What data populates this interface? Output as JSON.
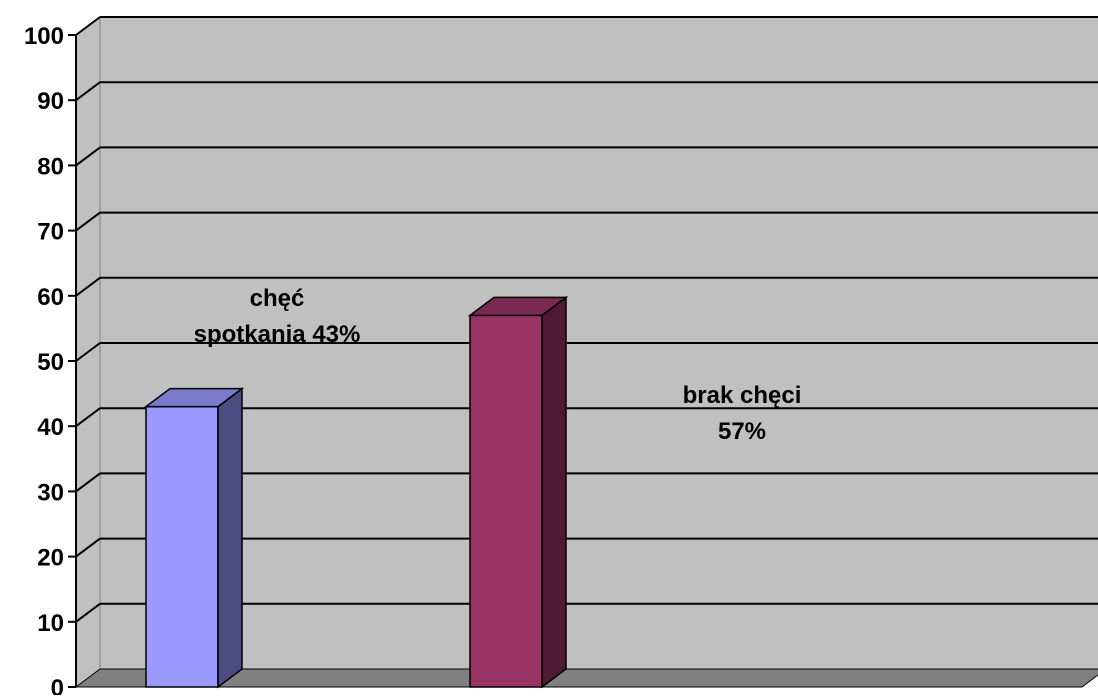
{
  "chart_data": {
    "type": "bar",
    "title": "",
    "xlabel": "",
    "ylabel": "",
    "ylim": [
      0,
      100
    ],
    "yticks": [
      0,
      10,
      20,
      30,
      40,
      50,
      60,
      70,
      80,
      90,
      100
    ],
    "grid": true,
    "legend": "none",
    "style": "3d-column",
    "categories": [
      "chęć spotkania",
      "brak chęci"
    ],
    "values": [
      43,
      57
    ],
    "data_labels": [
      [
        "chęć",
        "spotkania 43%"
      ],
      [
        "brak chęci",
        "57%"
      ]
    ],
    "colors": {
      "wall": "#c0c0c0",
      "floor": "#808080",
      "gridline": "#000000",
      "bar1_front": "#9999ff",
      "bar1_side": "#4c4c80",
      "bar1_top": "#7a7acc",
      "bar2_front": "#993366",
      "bar2_side": "#4d1a33",
      "bar2_top": "#7a2952"
    }
  }
}
